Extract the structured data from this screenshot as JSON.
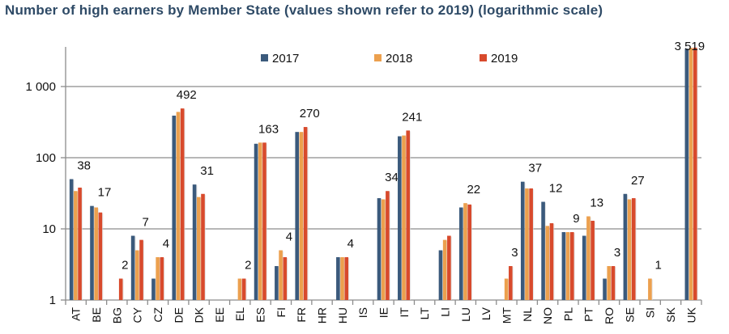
{
  "chart_data": {
    "type": "bar",
    "title": "Number of high earners by Member State (values shown refer to 2019) (logarithmic scale)",
    "xlabel": "",
    "ylabel": "",
    "yscale": "log",
    "ylim": [
      1,
      3600
    ],
    "yticks": [
      1,
      10,
      100,
      1000
    ],
    "ytick_labels": [
      "1",
      "10",
      "100",
      "1 000"
    ],
    "grid": true,
    "legend_position": "top",
    "categories": [
      "AT",
      "BE",
      "BG",
      "CY",
      "CZ",
      "DE",
      "DK",
      "EE",
      "EL",
      "ES",
      "FI",
      "FR",
      "HR",
      "HU",
      "IS",
      "IE",
      "IT",
      "LT",
      "LI",
      "LU",
      "LV",
      "MT",
      "NL",
      "NO",
      "PL",
      "PT",
      "RO",
      "SE",
      "SI",
      "SK",
      "UK"
    ],
    "series": [
      {
        "name": "2017",
        "color": "#3b5a7c",
        "values": [
          50,
          21,
          null,
          8,
          2,
          390,
          42,
          null,
          null,
          157,
          3,
          230,
          null,
          4,
          null,
          27,
          200,
          null,
          5,
          20,
          null,
          null,
          46,
          24,
          9,
          8,
          2,
          31,
          null,
          null,
          3400
        ]
      },
      {
        "name": "2018",
        "color": "#eca04e",
        "values": [
          34,
          20,
          null,
          5,
          4,
          440,
          28,
          null,
          2,
          163,
          5,
          230,
          null,
          4,
          null,
          26,
          205,
          null,
          7,
          23,
          null,
          2,
          37,
          11,
          9,
          15,
          3,
          26,
          2,
          null,
          3500
        ]
      },
      {
        "name": "2019",
        "color": "#d84a2c",
        "values": [
          38,
          17,
          2,
          7,
          4,
          492,
          31,
          null,
          2,
          163,
          4,
          270,
          null,
          4,
          null,
          34,
          241,
          null,
          8,
          22,
          null,
          3,
          37,
          12,
          9,
          13,
          3,
          27,
          1,
          null,
          3519
        ]
      }
    ],
    "data_labels": [
      "38",
      "17",
      "2",
      "7",
      "4",
      "492",
      "31",
      "",
      "2",
      "163",
      "4",
      "270",
      "",
      "4",
      "",
      "34",
      "241",
      "",
      "",
      "22",
      "",
      "3",
      "37",
      "12",
      "9",
      "13",
      "3",
      "27",
      "1",
      "",
      "3 519"
    ]
  }
}
